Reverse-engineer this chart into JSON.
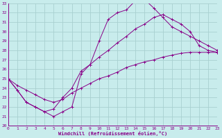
{
  "xlabel": "Windchill (Refroidissement éolien,°C)",
  "bg_color": "#c8ecec",
  "grid_color": "#a8d0d0",
  "line_color": "#880088",
  "xlim": [
    0,
    23
  ],
  "ylim": [
    20,
    33
  ],
  "xticks": [
    0,
    1,
    2,
    3,
    4,
    5,
    6,
    7,
    8,
    9,
    10,
    11,
    12,
    13,
    14,
    15,
    16,
    17,
    18,
    19,
    20,
    21,
    22,
    23
  ],
  "yticks": [
    20,
    21,
    22,
    23,
    24,
    25,
    26,
    27,
    28,
    29,
    30,
    31,
    32,
    33
  ],
  "line1_x": [
    0,
    1,
    2,
    3,
    4,
    5,
    6,
    7,
    8,
    9,
    10,
    11,
    12,
    13,
    14,
    15,
    16,
    17,
    18,
    19,
    20,
    21,
    22,
    23
  ],
  "line1_y": [
    25.0,
    23.8,
    22.5,
    22.0,
    21.5,
    21.0,
    21.5,
    22.0,
    25.5,
    26.5,
    29.0,
    31.3,
    32.0,
    32.3,
    33.3,
    33.4,
    32.5,
    31.5,
    30.5,
    30.0,
    29.5,
    29.0,
    28.5,
    28.0
  ],
  "line2_x": [
    0,
    1,
    2,
    3,
    4,
    5,
    6,
    7,
    8,
    9,
    10,
    11,
    12,
    13,
    14,
    15,
    16,
    17,
    18,
    19,
    20,
    21,
    22,
    23
  ],
  "line2_y": [
    25.0,
    23.8,
    22.5,
    22.0,
    21.5,
    21.8,
    23.0,
    24.0,
    25.8,
    26.5,
    27.3,
    28.0,
    28.8,
    29.5,
    30.3,
    30.8,
    31.5,
    31.8,
    31.3,
    30.8,
    30.0,
    28.5,
    28.0,
    27.8
  ],
  "line3_x": [
    0,
    1,
    2,
    3,
    4,
    5,
    6,
    7,
    8,
    9,
    10,
    11,
    12,
    13,
    14,
    15,
    16,
    17,
    18,
    19,
    20,
    21,
    22,
    23
  ],
  "line3_y": [
    25.0,
    24.3,
    23.8,
    23.3,
    22.8,
    22.5,
    22.8,
    23.5,
    24.0,
    24.5,
    25.0,
    25.3,
    25.7,
    26.2,
    26.5,
    26.8,
    27.0,
    27.3,
    27.5,
    27.7,
    27.8,
    27.8,
    27.8,
    27.8
  ]
}
